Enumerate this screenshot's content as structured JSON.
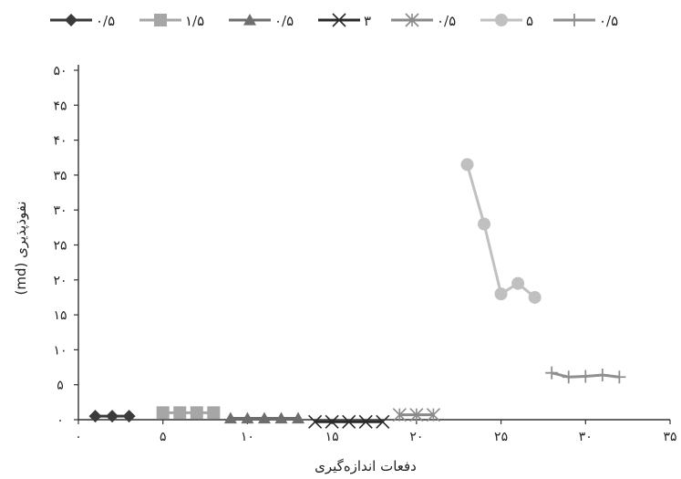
{
  "chart_data": {
    "type": "line",
    "xlabel": "دفعات اندازه‌گیری",
    "ylabel": "نفوذپذیری (md)",
    "xlim": [
      0,
      35
    ],
    "ylim": [
      0,
      50
    ],
    "x_ticks": [
      0,
      5,
      10,
      15,
      20,
      25,
      30,
      35
    ],
    "x_tick_labels": [
      "۰",
      "۵",
      "۱۰",
      "۱۵",
      "۲۰",
      "۲۵",
      "۳۰",
      "۳۵"
    ],
    "y_ticks": [
      0,
      5,
      10,
      15,
      20,
      25,
      30,
      35,
      40,
      45,
      50
    ],
    "y_tick_labels": [
      "۰",
      "۵",
      "۱۰",
      "۱۵",
      "۲۰",
      "۲۵",
      "۳۰",
      "۳۵",
      "۴۰",
      "۴۵",
      "۵۰"
    ],
    "legend_position": "top",
    "grid": false,
    "series": [
      {
        "name": "۰/۵",
        "marker": "diamond",
        "color": "#3a3a3a",
        "x": [
          1,
          2,
          3
        ],
        "y": [
          0.5,
          0.5,
          0.5
        ]
      },
      {
        "name": "۱/۵",
        "marker": "square",
        "color": "#a6a6a6",
        "x": [
          5,
          6,
          7,
          8
        ],
        "y": [
          1,
          1,
          1,
          1
        ]
      },
      {
        "name": "۰/۵",
        "marker": "triangle",
        "color": "#6e6e6e",
        "x": [
          9,
          10,
          11,
          12,
          13
        ],
        "y": [
          0.2,
          0.2,
          0.2,
          0.2,
          0.2
        ]
      },
      {
        "name": "۳",
        "marker": "x",
        "color": "#2a2a2a",
        "x": [
          14,
          15,
          16,
          17,
          18
        ],
        "y": [
          -0.3,
          -0.3,
          -0.3,
          -0.3,
          -0.3
        ]
      },
      {
        "name": "۰/۵",
        "marker": "star",
        "color": "#8a8a8a",
        "x": [
          19,
          20,
          21
        ],
        "y": [
          0.7,
          0.7,
          0.7
        ]
      },
      {
        "name": "۵",
        "marker": "circle",
        "color": "#c0c0c0",
        "x": [
          23,
          24,
          25,
          26,
          27
        ],
        "y": [
          36.5,
          28,
          18,
          19.5,
          17.5
        ]
      },
      {
        "name": "۰/۵",
        "marker": "plus",
        "color": "#8f8f8f",
        "x": [
          28,
          29,
          30,
          31,
          32
        ],
        "y": [
          6.7,
          6.1,
          6.2,
          6.4,
          6.1
        ]
      }
    ]
  }
}
